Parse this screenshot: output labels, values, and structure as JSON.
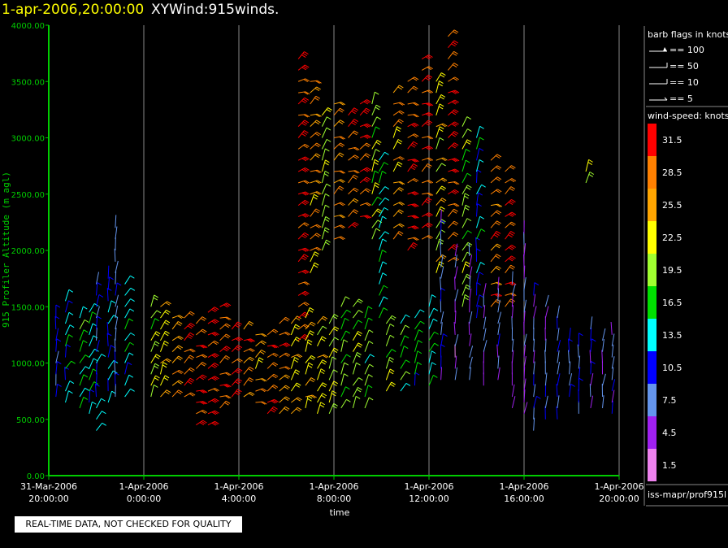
{
  "header": {
    "timestamp": "1-apr-2006,20:00:00",
    "title": "XYWind:915winds."
  },
  "notice": "REAL-TIME DATA, NOT CHECKED FOR QUALITY",
  "footer_label": "iss-mapr/prof915l",
  "colors": {
    "background": "#000000",
    "axis": "#00cc00",
    "timestamp": "#ffff00",
    "gridline": "#888888"
  },
  "legend": {
    "barb_title": "barb flags in knots",
    "barbs": [
      {
        "label": "== 100"
      },
      {
        "label": "== 50"
      },
      {
        "label": "== 10"
      },
      {
        "label": "== 5"
      }
    ],
    "speed_title": "wind-speed: knots",
    "scale": [
      {
        "label": "31.5",
        "color": "#ff0000"
      },
      {
        "label": "28.5",
        "color": "#ff8000"
      },
      {
        "label": "25.5",
        "color": "#ffa500"
      },
      {
        "label": "22.5",
        "color": "#ffff00"
      },
      {
        "label": "19.5",
        "color": "#a0ff30"
      },
      {
        "label": "16.5",
        "color": "#00e000"
      },
      {
        "label": "13.5",
        "color": "#00ffff"
      },
      {
        "label": "10.5",
        "color": "#0000ff"
      },
      {
        "label": "7.5",
        "color": "#6495ed"
      },
      {
        "label": "4.5",
        "color": "#a020f0"
      },
      {
        "label": "1.5",
        "color": "#ee82ee"
      }
    ]
  },
  "chart_data": {
    "type": "scatter",
    "ylabel": "915 Profiler Altitude (m agl)",
    "xlabel": "time",
    "ylim": [
      0,
      4000
    ],
    "yticks": [
      "0.00",
      "500.00",
      "1000.00",
      "1500.00",
      "2000.00",
      "2500.00",
      "3000.00",
      "3500.00",
      "4000.00"
    ],
    "xlim_hours": [
      0,
      24
    ],
    "xticks": [
      {
        "date": "31-Mar-2006",
        "time": "20:00:00"
      },
      {
        "date": "1-Apr-2006",
        "time": "0:00:00"
      },
      {
        "date": "1-Apr-2006",
        "time": "4:00:00"
      },
      {
        "date": "1-Apr-2006",
        "time": "8:00:00"
      },
      {
        "date": "1-Apr-2006",
        "time": "12:00:00"
      },
      {
        "date": "1-Apr-2006",
        "time": "16:00:00"
      },
      {
        "date": "1-Apr-2006",
        "time": "20:00:00"
      }
    ],
    "grid": "vertical",
    "profile_interval_hours": 0.5,
    "profiles": [
      {
        "t": 0.3,
        "bottom": 700,
        "top": 1400,
        "speed": 11
      },
      {
        "t": 0.7,
        "bottom": 650,
        "top": 1600,
        "speed": 13
      },
      {
        "t": 1.3,
        "bottom": 600,
        "top": 1400,
        "speed": 17
      },
      {
        "t": 1.7,
        "bottom": 550,
        "top": 1500,
        "speed": 14
      },
      {
        "t": 2.0,
        "bottom": 400,
        "top": 1700,
        "speed": 11
      },
      {
        "t": 2.5,
        "bottom": 650,
        "top": 1800,
        "speed": 12
      },
      {
        "t": 2.8,
        "bottom": 700,
        "top": 2250,
        "speed": 9
      },
      {
        "t": 3.2,
        "bottom": 700,
        "top": 1700,
        "speed": 13
      },
      {
        "t": 4.3,
        "bottom": 700,
        "top": 1500,
        "speed": 20
      },
      {
        "t": 4.7,
        "bottom": 700,
        "top": 1550,
        "speed": 24
      },
      {
        "t": 5.2,
        "bottom": 700,
        "top": 1450,
        "speed": 27
      },
      {
        "t": 5.7,
        "bottom": 700,
        "top": 1450,
        "speed": 30
      },
      {
        "t": 6.2,
        "bottom": 450,
        "top": 1350,
        "speed": 31
      },
      {
        "t": 6.7,
        "bottom": 450,
        "top": 1500,
        "speed": 32
      },
      {
        "t": 7.2,
        "bottom": 600,
        "top": 1550,
        "speed": 30
      },
      {
        "t": 7.7,
        "bottom": 700,
        "top": 1350,
        "speed": 31
      },
      {
        "t": 8.2,
        "bottom": 700,
        "top": 1300,
        "speed": 28
      },
      {
        "t": 8.7,
        "bottom": 650,
        "top": 1300,
        "speed": 26
      },
      {
        "t": 9.2,
        "bottom": 550,
        "top": 1250,
        "speed": 30
      },
      {
        "t": 9.7,
        "bottom": 550,
        "top": 1350,
        "speed": 29
      },
      {
        "t": 10.2,
        "bottom": 550,
        "top": 1350,
        "speed": 24
      },
      {
        "t": 10.5,
        "bottom": 1200,
        "top": 3700,
        "speed": 31
      },
      {
        "t": 10.8,
        "bottom": 600,
        "top": 1450,
        "speed": 25
      },
      {
        "t": 11.0,
        "bottom": 1800,
        "top": 3500,
        "speed": 26
      },
      {
        "t": 11.3,
        "bottom": 550,
        "top": 1350,
        "speed": 22
      },
      {
        "t": 11.5,
        "bottom": 2000,
        "top": 3250,
        "speed": 21
      },
      {
        "t": 11.8,
        "bottom": 550,
        "top": 1400,
        "speed": 21
      },
      {
        "t": 12.0,
        "bottom": 2100,
        "top": 3300,
        "speed": 27
      },
      {
        "t": 12.3,
        "bottom": 600,
        "top": 1500,
        "speed": 18
      },
      {
        "t": 12.6,
        "bottom": 2200,
        "top": 3250,
        "speed": 29
      },
      {
        "t": 12.8,
        "bottom": 600,
        "top": 1500,
        "speed": 20
      },
      {
        "t": 13.1,
        "bottom": 2300,
        "top": 3300,
        "speed": 30
      },
      {
        "t": 13.3,
        "bottom": 600,
        "top": 1450,
        "speed": 17
      },
      {
        "t": 13.6,
        "bottom": 2100,
        "top": 3300,
        "speed": 20
      },
      {
        "t": 13.9,
        "bottom": 1400,
        "top": 2800,
        "speed": 15
      },
      {
        "t": 14.2,
        "bottom": 750,
        "top": 1400,
        "speed": 20
      },
      {
        "t": 14.5,
        "bottom": 2100,
        "top": 3400,
        "speed": 26
      },
      {
        "t": 14.8,
        "bottom": 750,
        "top": 1400,
        "speed": 17
      },
      {
        "t": 15.1,
        "bottom": 2000,
        "top": 3500,
        "speed": 31
      },
      {
        "t": 15.4,
        "bottom": 800,
        "top": 1400,
        "speed": 14
      },
      {
        "t": 15.7,
        "bottom": 2100,
        "top": 3700,
        "speed": 30
      },
      {
        "t": 16.0,
        "bottom": 800,
        "top": 1500,
        "speed": 15
      },
      {
        "t": 16.3,
        "bottom": 1800,
        "top": 3550,
        "speed": 22
      },
      {
        "t": 16.5,
        "bottom": 850,
        "top": 2300,
        "speed": 8
      },
      {
        "t": 16.8,
        "bottom": 1900,
        "top": 3950,
        "speed": 30
      },
      {
        "t": 17.1,
        "bottom": 850,
        "top": 2000,
        "speed": 5
      },
      {
        "t": 17.4,
        "bottom": 1500,
        "top": 3150,
        "speed": 19
      },
      {
        "t": 17.7,
        "bottom": 850,
        "top": 2000,
        "speed": 6
      },
      {
        "t": 18.0,
        "bottom": 1400,
        "top": 3000,
        "speed": 13
      },
      {
        "t": 18.3,
        "bottom": 800,
        "top": 1600,
        "speed": 6
      },
      {
        "t": 18.6,
        "bottom": 1500,
        "top": 2850,
        "speed": 28
      },
      {
        "t": 18.9,
        "bottom": 850,
        "top": 1700,
        "speed": 7
      },
      {
        "t": 19.2,
        "bottom": 1500,
        "top": 2700,
        "speed": 30
      },
      {
        "t": 19.5,
        "bottom": 600,
        "top": 1700,
        "speed": 6
      },
      {
        "t": 20.0,
        "bottom": 550,
        "top": 2200,
        "speed": 6
      },
      {
        "t": 20.4,
        "bottom": 400,
        "top": 1600,
        "speed": 8
      },
      {
        "t": 20.9,
        "bottom": 500,
        "top": 1500,
        "speed": 7
      },
      {
        "t": 21.4,
        "bottom": 500,
        "top": 1450,
        "speed": 9
      },
      {
        "t": 21.9,
        "bottom": 700,
        "top": 1200,
        "speed": 8
      },
      {
        "t": 22.3,
        "bottom": 550,
        "top": 1200,
        "speed": 10
      },
      {
        "t": 22.6,
        "bottom": 2600,
        "top": 2750,
        "speed": 19
      },
      {
        "t": 22.8,
        "bottom": 600,
        "top": 1300,
        "speed": 8
      },
      {
        "t": 23.3,
        "bottom": 600,
        "top": 1200,
        "speed": 6
      },
      {
        "t": 23.7,
        "bottom": 550,
        "top": 1250,
        "speed": 7
      }
    ]
  }
}
